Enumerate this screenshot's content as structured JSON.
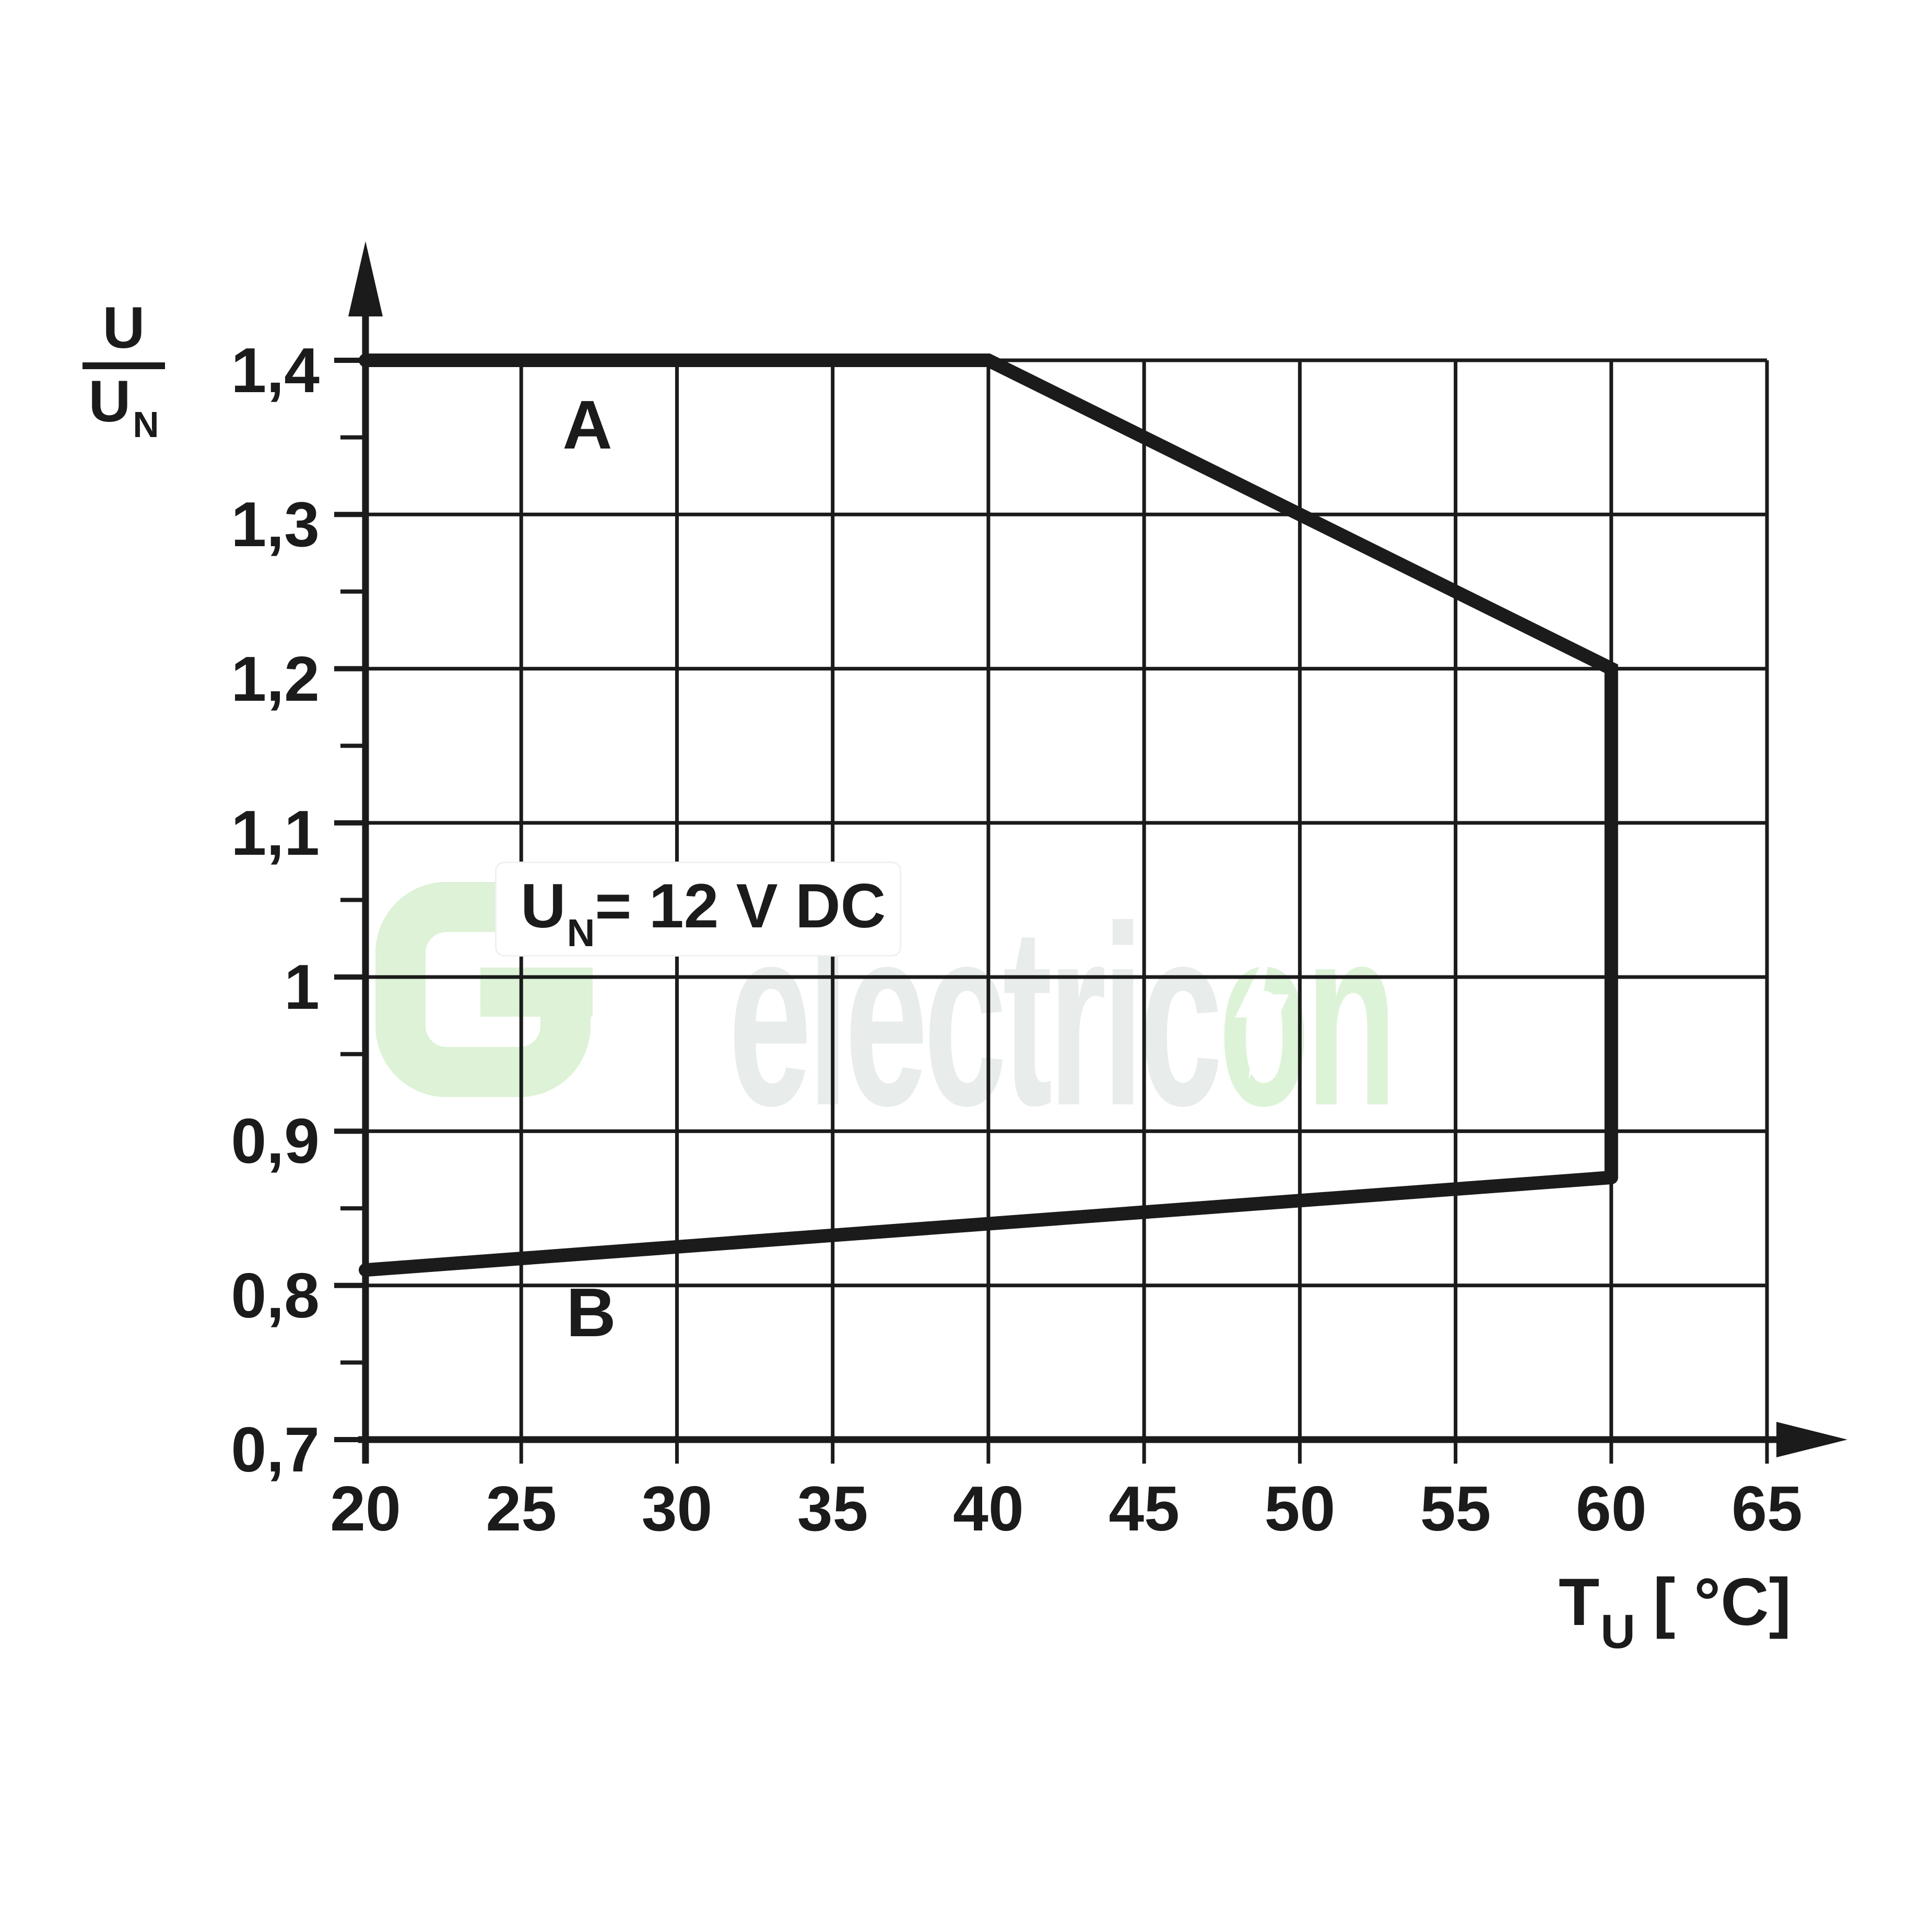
{
  "colors": {
    "ink": "#1b1b1b",
    "grid": "#1b1b1b",
    "watermark_gray": "#e8eceb",
    "watermark_green": "#ddf3d7",
    "annotation_bg": "#ffffff"
  },
  "y_axis": {
    "fraction_label": {
      "numerator": "U",
      "denominator_base": "U",
      "denominator_sub": "N"
    }
  },
  "x_axis": {
    "title": {
      "base": "T",
      "sub": "U",
      "rest": "[ °C]"
    }
  },
  "annotation_box": {
    "base": "U",
    "sub": "N",
    "rest": "= 12 V DC"
  },
  "curve_labels": {
    "a": "A",
    "b": "B"
  },
  "watermark": {
    "gray_text": "electric",
    "green_o": "o",
    "green_n": "n",
    "logo_icon": "g-logo-icon",
    "bolt_icon": "lightning-bolt-icon"
  },
  "chart_data": {
    "type": "line",
    "xlabel": "T_U [°C]",
    "ylabel": "U/U_N",
    "xlim": [
      20,
      65
    ],
    "ylim": [
      0.7,
      1.4
    ],
    "x_ticks": [
      20,
      25,
      30,
      35,
      40,
      45,
      50,
      55,
      60,
      65
    ],
    "x_tick_labels": [
      "20",
      "25",
      "30",
      "35",
      "40",
      "45",
      "50",
      "55",
      "60",
      "65"
    ],
    "y_ticks": [
      1.4,
      1.3,
      1.2,
      1.1,
      1.0,
      0.9,
      0.8,
      0.7
    ],
    "y_tick_labels": [
      "1,4",
      "1,3",
      "1,2",
      "1,1",
      "1",
      "0,9",
      "0,8",
      "0,7"
    ],
    "y_minor_tick_step": 0.05,
    "grid": true,
    "legend_position": "none",
    "annotation": "U_N = 12 V DC",
    "series": [
      {
        "name": "A",
        "points": [
          [
            20,
            1.4
          ],
          [
            40,
            1.4
          ],
          [
            60,
            1.2
          ],
          [
            60,
            0.87
          ]
        ]
      },
      {
        "name": "B",
        "points": [
          [
            20,
            0.81
          ],
          [
            60,
            0.87
          ]
        ]
      }
    ]
  }
}
